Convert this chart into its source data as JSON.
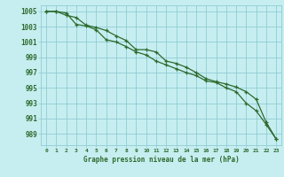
{
  "background_color": "#c6eef0",
  "grid_color": "#90ccd4",
  "line_color": "#2d6a2d",
  "marker_color": "#2d6a2d",
  "title": "Graphe pression niveau de la mer (hPa)",
  "xlim": [
    -0.5,
    23.5
  ],
  "ylim": [
    987.5,
    1005.8
  ],
  "yticks": [
    989,
    991,
    993,
    995,
    997,
    999,
    1001,
    1003,
    1005
  ],
  "xticks": [
    0,
    1,
    2,
    3,
    4,
    5,
    6,
    7,
    8,
    9,
    10,
    11,
    12,
    13,
    14,
    15,
    16,
    17,
    18,
    19,
    20,
    21,
    22,
    23
  ],
  "line1_x": [
    0,
    1,
    2,
    3,
    4,
    5,
    6,
    7,
    8,
    9,
    10,
    11,
    12,
    13,
    14,
    15,
    16,
    17,
    18,
    19,
    20,
    21,
    22,
    23
  ],
  "line1_y": [
    1005.0,
    1005.0,
    1004.5,
    1004.2,
    1003.2,
    1002.9,
    1002.5,
    1001.8,
    1001.2,
    1000.0,
    1000.0,
    999.7,
    998.5,
    998.2,
    997.7,
    997.0,
    996.2,
    995.8,
    995.5,
    995.1,
    994.5,
    993.5,
    990.5,
    988.3
  ],
  "line2_x": [
    0,
    1,
    2,
    3,
    4,
    5,
    6,
    7,
    8,
    9,
    10,
    11,
    12,
    13,
    14,
    15,
    16,
    17,
    18,
    19,
    20,
    21,
    22,
    23
  ],
  "line2_y": [
    1005.0,
    1005.0,
    1004.8,
    1003.3,
    1003.1,
    1002.6,
    1001.3,
    1001.0,
    1000.4,
    999.7,
    999.3,
    998.5,
    998.0,
    997.5,
    997.0,
    996.6,
    995.9,
    995.7,
    995.0,
    994.5,
    993.0,
    992.0,
    990.2,
    988.3
  ],
  "figwidth": 3.2,
  "figheight": 2.0,
  "dpi": 100
}
